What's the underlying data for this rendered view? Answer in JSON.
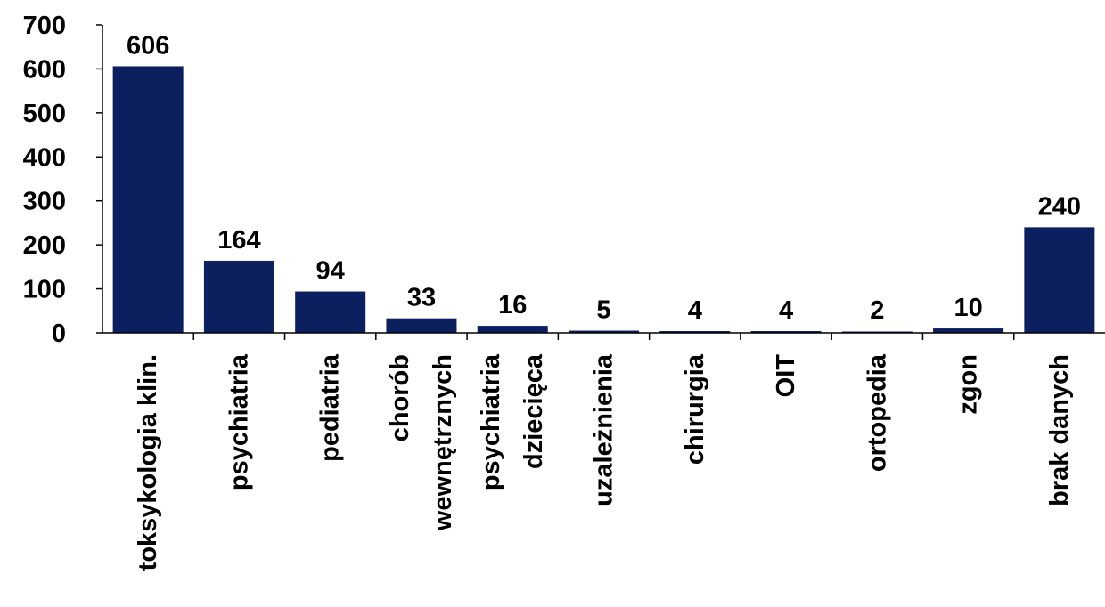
{
  "chart_data": {
    "type": "bar",
    "categories": [
      [
        "toksykologia klin."
      ],
      [
        "psychiatria"
      ],
      [
        "pediatria"
      ],
      [
        "chorób",
        "wewnętrznych"
      ],
      [
        "psychiatria",
        "dziecięca"
      ],
      [
        "uzależnienia"
      ],
      [
        "chirurgia"
      ],
      [
        "OIT"
      ],
      [
        "ortopedia"
      ],
      [
        "zgon"
      ],
      [
        "brak danych"
      ]
    ],
    "values": [
      606,
      164,
      94,
      33,
      16,
      5,
      4,
      4,
      2,
      10,
      240
    ],
    "yticks": [
      0,
      100,
      200,
      300,
      400,
      500,
      600,
      700
    ],
    "ylim": [
      0,
      700
    ],
    "title": "",
    "xlabel": "",
    "ylabel": "",
    "grid": false,
    "legend": "none",
    "colors": {
      "bar": "#0c1f5f",
      "axis": "#000000",
      "text": "#000000"
    }
  }
}
